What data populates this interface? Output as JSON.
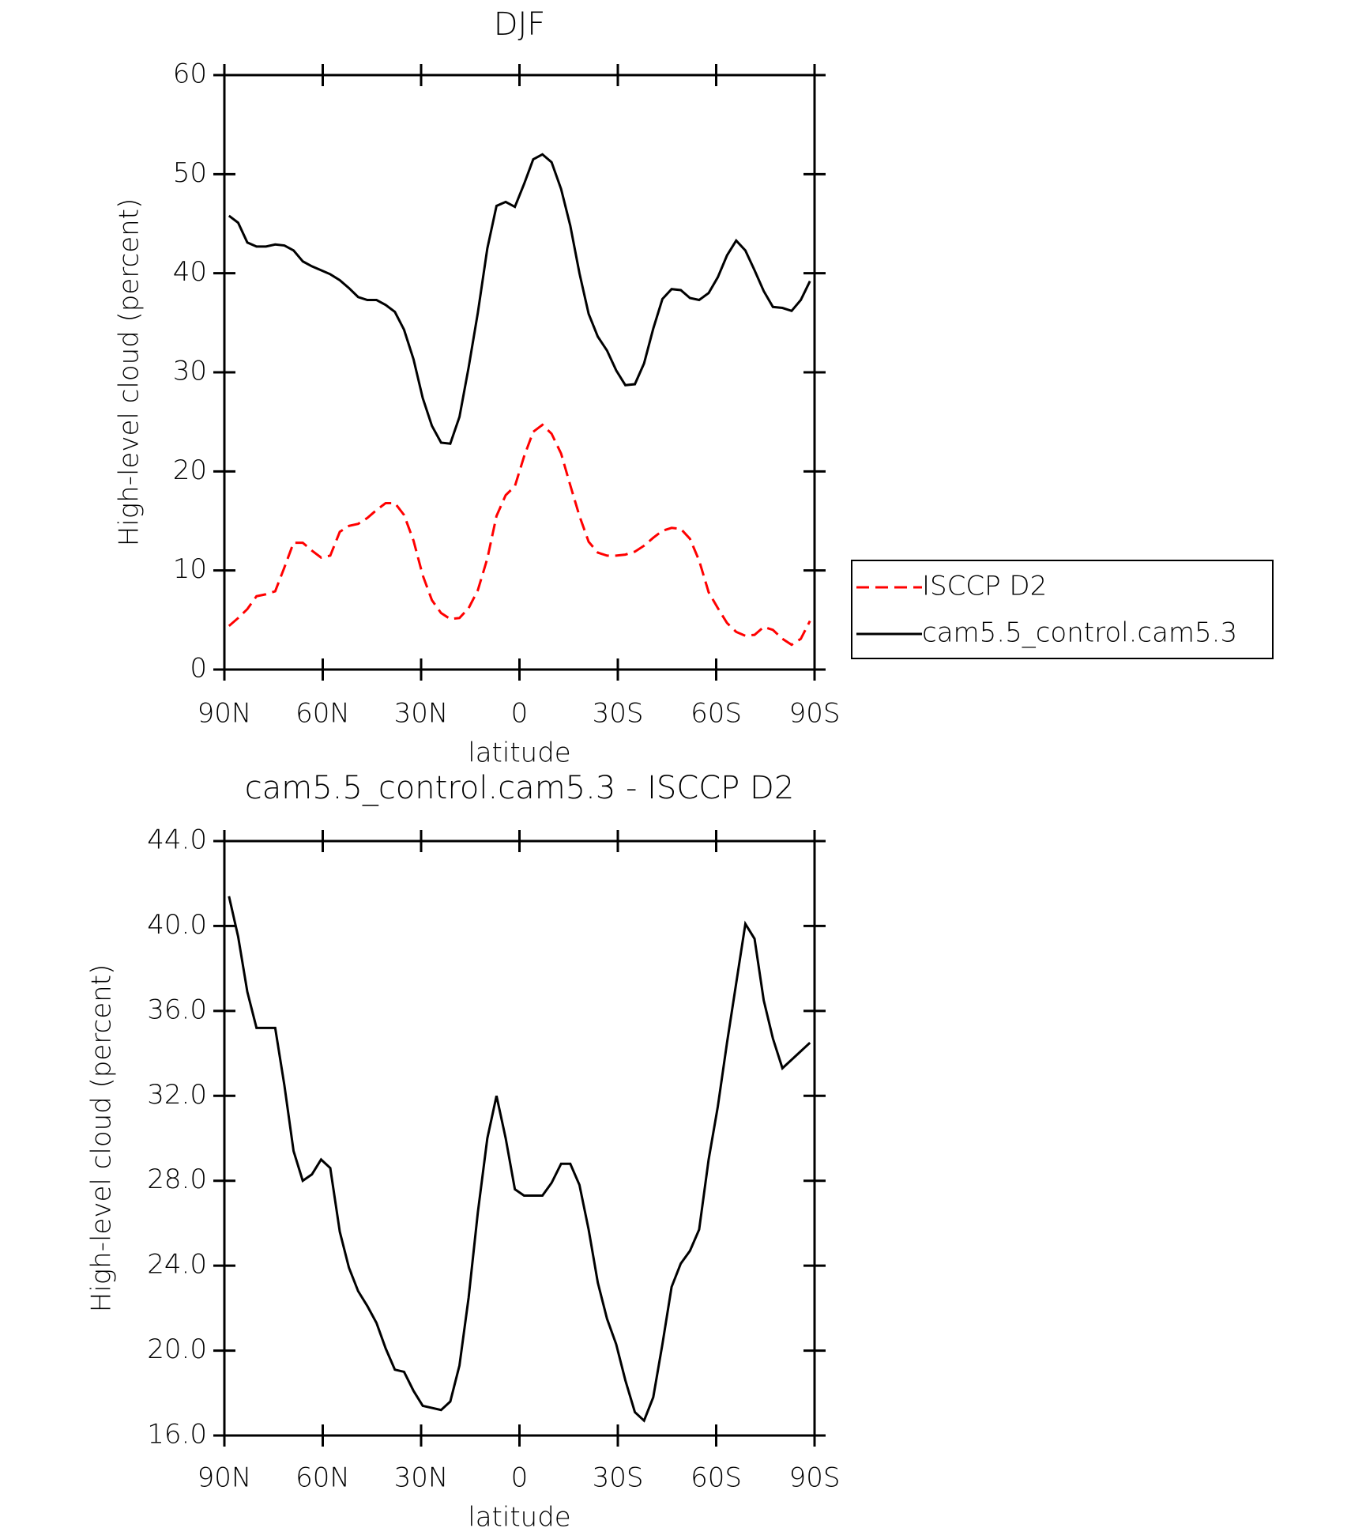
{
  "chart_data": [
    {
      "type": "line",
      "title": "DJF",
      "xlabel": "latitude",
      "ylabel": "High-level cloud (percent)",
      "x": [
        88.6,
        85.8,
        83.0,
        80.2,
        77.3,
        74.5,
        71.7,
        68.9,
        66.1,
        63.3,
        60.5,
        57.7,
        54.8,
        52.0,
        49.2,
        46.4,
        43.6,
        40.8,
        38.0,
        35.2,
        32.3,
        29.5,
        26.7,
        23.9,
        21.1,
        18.3,
        15.5,
        12.7,
        9.8,
        7.0,
        4.2,
        1.4,
        -1.4,
        -4.2,
        -7.0,
        -9.8,
        -12.7,
        -15.5,
        -18.3,
        -21.1,
        -23.9,
        -26.7,
        -29.5,
        -32.3,
        -35.2,
        -38.0,
        -40.8,
        -43.6,
        -46.4,
        -49.2,
        -52.0,
        -54.8,
        -57.7,
        -60.5,
        -63.3,
        -66.1,
        -68.9,
        -71.7,
        -74.5,
        -77.3,
        -80.2,
        -83.0,
        -85.8,
        -88.6
      ],
      "series": [
        {
          "name": "ISCCP D2",
          "color": "#ff0000",
          "line_style": "dashed",
          "values": [
            4.4,
            5.2,
            6.1,
            7.4,
            7.6,
            7.9,
            10.3,
            12.8,
            12.8,
            12.0,
            11.3,
            11.5,
            13.9,
            14.5,
            14.7,
            15.3,
            16.1,
            16.8,
            16.8,
            15.6,
            13.0,
            9.5,
            7.0,
            5.7,
            5.1,
            5.2,
            6.2,
            8.0,
            11.2,
            15.5,
            17.6,
            18.5,
            21.5,
            24.0,
            24.7,
            23.8,
            21.8,
            18.6,
            15.5,
            12.9,
            11.8,
            11.5,
            11.5,
            11.6,
            11.9,
            12.5,
            13.3,
            14.0,
            14.3,
            14.2,
            13.2,
            11.0,
            7.8,
            6.2,
            4.7,
            3.8,
            3.4,
            3.5,
            4.3,
            4.0,
            3.1,
            2.5,
            3.1,
            4.9
          ]
        },
        {
          "name": "cam5.5_control.cam5.3",
          "color": "#000000",
          "line_style": "solid",
          "values": [
            45.8,
            45.1,
            43.1,
            42.7,
            42.7,
            42.9,
            42.8,
            42.3,
            41.2,
            40.7,
            40.3,
            39.9,
            39.3,
            38.5,
            37.6,
            37.3,
            37.3,
            36.8,
            36.1,
            34.3,
            31.3,
            27.4,
            24.6,
            22.9,
            22.8,
            25.5,
            30.5,
            36.0,
            42.5,
            46.8,
            47.2,
            46.7,
            49.0,
            51.5,
            52.0,
            51.2,
            48.5,
            44.8,
            40.0,
            35.9,
            33.6,
            32.2,
            30.2,
            28.7,
            28.8,
            30.9,
            34.4,
            37.4,
            38.4,
            38.3,
            37.5,
            37.3,
            38.0,
            39.6,
            41.8,
            43.3,
            42.3,
            40.3,
            38.2,
            36.6,
            36.5,
            36.2,
            37.3,
            39.2
          ]
        }
      ],
      "xlim": [
        90,
        -90
      ],
      "xticks": [
        {
          "value": 90,
          "label": "90N"
        },
        {
          "value": 60,
          "label": "60N"
        },
        {
          "value": 30,
          "label": "30N"
        },
        0,
        {
          "value": -30,
          "label": "30S"
        },
        {
          "value": -60,
          "label": "60S"
        },
        {
          "value": -90,
          "label": "90S"
        }
      ],
      "ylim": [
        0,
        60
      ],
      "yticks": [
        0,
        10,
        20,
        30,
        40,
        50,
        60
      ],
      "legend": "right"
    },
    {
      "type": "line",
      "title": "cam5.5_control.cam5.3 - ISCCP D2",
      "xlabel": "latitude",
      "ylabel": "High-level cloud (percent)",
      "x": [
        88.6,
        85.8,
        83.0,
        80.2,
        77.3,
        74.5,
        71.7,
        68.9,
        66.1,
        63.3,
        60.5,
        57.7,
        54.8,
        52.0,
        49.2,
        46.4,
        43.6,
        40.8,
        38.0,
        35.2,
        32.3,
        29.5,
        26.7,
        23.9,
        21.1,
        18.3,
        15.5,
        12.7,
        9.8,
        7.0,
        4.2,
        1.4,
        -1.4,
        -4.2,
        -7.0,
        -9.8,
        -12.7,
        -15.5,
        -18.3,
        -21.1,
        -23.9,
        -26.7,
        -29.5,
        -32.3,
        -35.2,
        -38.0,
        -40.8,
        -43.6,
        -46.4,
        -49.2,
        -52.0,
        -54.8,
        -57.7,
        -60.5,
        -63.3,
        -66.1,
        -68.9,
        -71.7,
        -74.5,
        -77.3,
        -80.2,
        -83.0,
        -85.8,
        -88.6
      ],
      "series": [
        {
          "color": "#000000",
          "line_style": "solid",
          "values": [
            41.4,
            39.5,
            36.9,
            35.2,
            35.2,
            35.2,
            32.5,
            29.4,
            28.0,
            28.3,
            29.0,
            28.6,
            25.6,
            23.9,
            22.8,
            22.1,
            21.3,
            20.1,
            19.1,
            19.0,
            18.1,
            17.4,
            17.3,
            17.2,
            17.6,
            19.3,
            22.5,
            26.5,
            30.0,
            32.0,
            30.0,
            27.6,
            27.3,
            27.3,
            27.3,
            27.9,
            28.8,
            28.8,
            27.8,
            25.7,
            23.2,
            21.5,
            20.3,
            18.6,
            17.1,
            16.7,
            17.8,
            20.3,
            23.0,
            24.1,
            24.7,
            25.7,
            29.0,
            31.5,
            34.5,
            37.3,
            40.1,
            39.4,
            36.5,
            34.7,
            33.3,
            33.7,
            34.1,
            34.5
          ]
        }
      ],
      "xlim": [
        90,
        -90
      ],
      "xticks": [
        {
          "value": 90,
          "label": "90N"
        },
        {
          "value": 60,
          "label": "60N"
        },
        {
          "value": 30,
          "label": "30N"
        },
        0,
        {
          "value": -30,
          "label": "30S"
        },
        {
          "value": -60,
          "label": "60S"
        },
        {
          "value": -90,
          "label": "90S"
        }
      ],
      "ylim": [
        16,
        44
      ],
      "yticks": [
        {
          "value": 16,
          "label": "16.0"
        },
        {
          "value": 20,
          "label": "20.0"
        },
        {
          "value": 24,
          "label": "24.0"
        },
        {
          "value": 28,
          "label": "28.0"
        },
        {
          "value": 32,
          "label": "32.0"
        },
        {
          "value": 36,
          "label": "36.0"
        },
        {
          "value": 40,
          "label": "40.0"
        },
        {
          "value": 44,
          "label": "44.0"
        }
      ]
    }
  ]
}
